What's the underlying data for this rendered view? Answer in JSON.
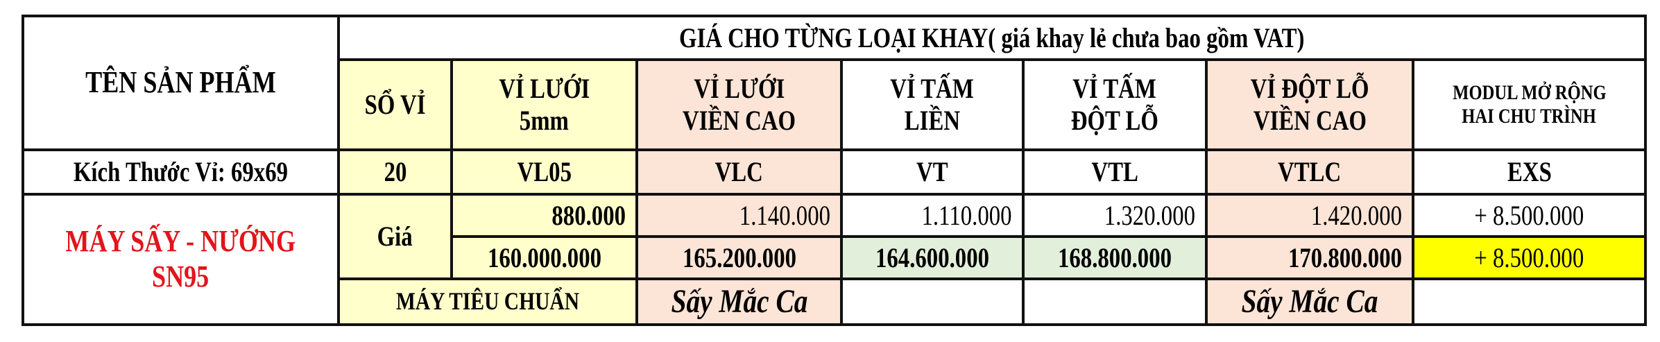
{
  "header": {
    "product_name_label": "TÊN SẢN PHẨM",
    "group_title": "GIÁ CHO TỪNG LOẠI KHAY( giá khay lẻ chưa bao gồm VAT)",
    "columns": [
      {
        "line1": "SỔ VỈ",
        "line2": ""
      },
      {
        "line1": "VỈ LƯỚI",
        "line2": "5mm"
      },
      {
        "line1": "VỈ LƯỚI",
        "line2": "VIỀN CAO"
      },
      {
        "line1": "VỈ TẤM",
        "line2": "LIỀN"
      },
      {
        "line1": "VỈ TẤM",
        "line2": "ĐỘT LỖ"
      },
      {
        "line1": "VỈ ĐỘT LỖ",
        "line2": "VIỀN CAO"
      },
      {
        "line1": "MODUL MỞ RỘNG",
        "line2": "HAI CHU TRÌNH"
      }
    ]
  },
  "size_row": {
    "label": "Kích Thước Vỉ: 69x69",
    "values": [
      "20",
      "VL05",
      "VLC",
      "VT",
      "VTL",
      "VTLC",
      "EXS"
    ]
  },
  "product": {
    "name_line1": "MÁY SẤY - NƯỚNG",
    "name_line2": "SN95",
    "price_label": "Giá",
    "tray_prices": [
      "880.000",
      "1.140.000",
      "1.110.000",
      "1.320.000",
      "1.420.000",
      "+ 8.500.000"
    ],
    "machine_prices": [
      "160.000.000",
      "165.200.000",
      "164.600.000",
      "168.800.000",
      "170.800.000",
      "+ 8.500.000"
    ],
    "notes": {
      "standard": "MÁY TIÊU CHUẨN",
      "vlc": "Sấy Mắc Ca",
      "vtlc": "Sấy Mắc Ca"
    }
  },
  "colors": {
    "light_yellow": "#ffffcc",
    "pink": "#fce4d6",
    "green": "#e2efda",
    "highlight_yellow": "#ffff00",
    "product_red": "#e3141b"
  }
}
